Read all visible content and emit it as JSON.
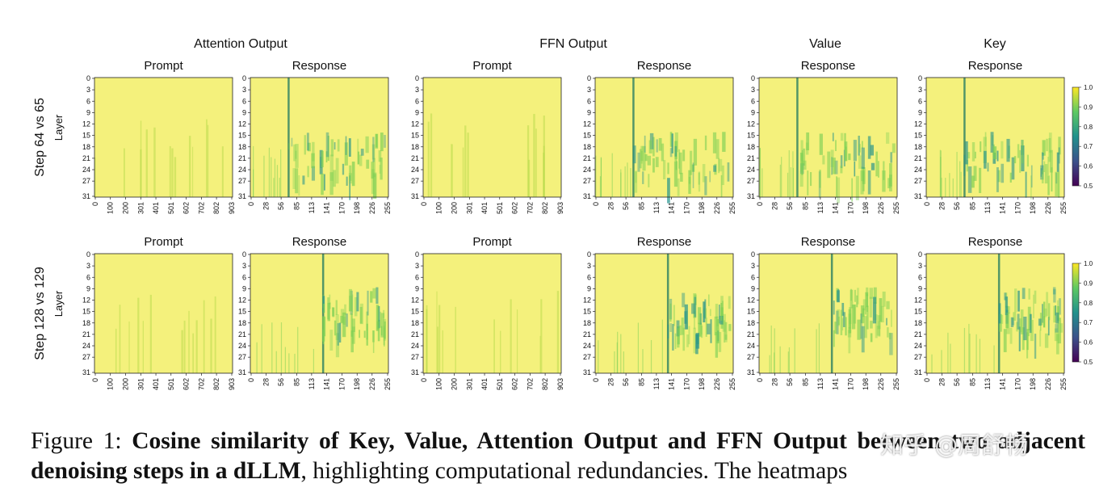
{
  "figure": {
    "column_titles": [
      "Attention Output",
      "FFN Output",
      "Value",
      "Key"
    ],
    "rows": [
      {
        "label": "Step 64 vs 65",
        "ylabel": "Layer",
        "panels": [
          "Prompt",
          "Response",
          "Prompt",
          "Response",
          "Response",
          "Response"
        ]
      },
      {
        "label": "Step 128 vs 129",
        "ylabel": "Layer",
        "panels": [
          "Prompt",
          "Response",
          "Prompt",
          "Response",
          "Response",
          "Response"
        ]
      }
    ],
    "y_ticks": [
      0,
      3,
      6,
      9,
      12,
      15,
      18,
      21,
      24,
      27,
      31
    ],
    "prompt_x_ticks": [
      0,
      100,
      200,
      301,
      401,
      501,
      602,
      702,
      802,
      903
    ],
    "response_x_ticks": [
      0,
      28,
      56,
      85,
      113,
      141,
      170,
      198,
      226,
      255
    ],
    "colorbar_ticks": [
      {
        "value": 1.0,
        "label": "1.0"
      },
      {
        "value": 0.9,
        "label": "0.9"
      },
      {
        "value": 0.8,
        "label": "0.8"
      },
      {
        "value": 0.7,
        "label": "0.7"
      },
      {
        "value": 0.6,
        "label": "0.6"
      },
      {
        "value": 0.5,
        "label": "0.5"
      }
    ]
  },
  "caption": {
    "prefix": "Figure 1:",
    "bold": "Cosine similarity of Key, Value, Attention Output and FFN Output between two adjacent denoising steps in a dLLM",
    "rest": ", highlighting computational redundancies. The heatmaps"
  },
  "watermark": "知乎 @周舒畅"
}
